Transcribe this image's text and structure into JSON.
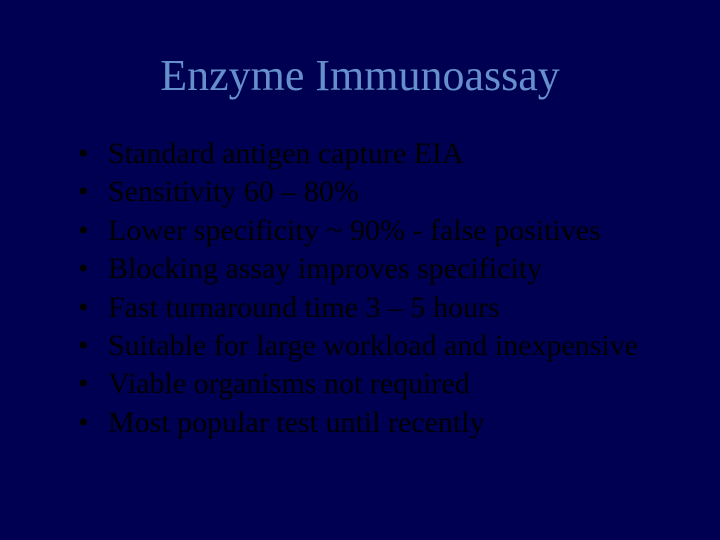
{
  "slide": {
    "background_color": "#000053",
    "title": {
      "text": "Enzyme Immunoassay",
      "color": "#6690cc",
      "fontsize": 44,
      "align": "center",
      "font_family": "Times New Roman"
    },
    "bullets": {
      "color": "#000000",
      "fontsize": 30,
      "marker": "•",
      "font_family": "Times New Roman",
      "items": [
        "Standard antigen capture EIA",
        "Sensitivity 60 – 80%",
        "Lower specificity ~ 90% - false positives",
        "Blocking assay improves specificity",
        "Fast turnaround time 3 – 5 hours",
        "Suitable for large workload and inexpensive",
        "Viable organisms not required",
        "Most popular test until recently"
      ]
    }
  }
}
